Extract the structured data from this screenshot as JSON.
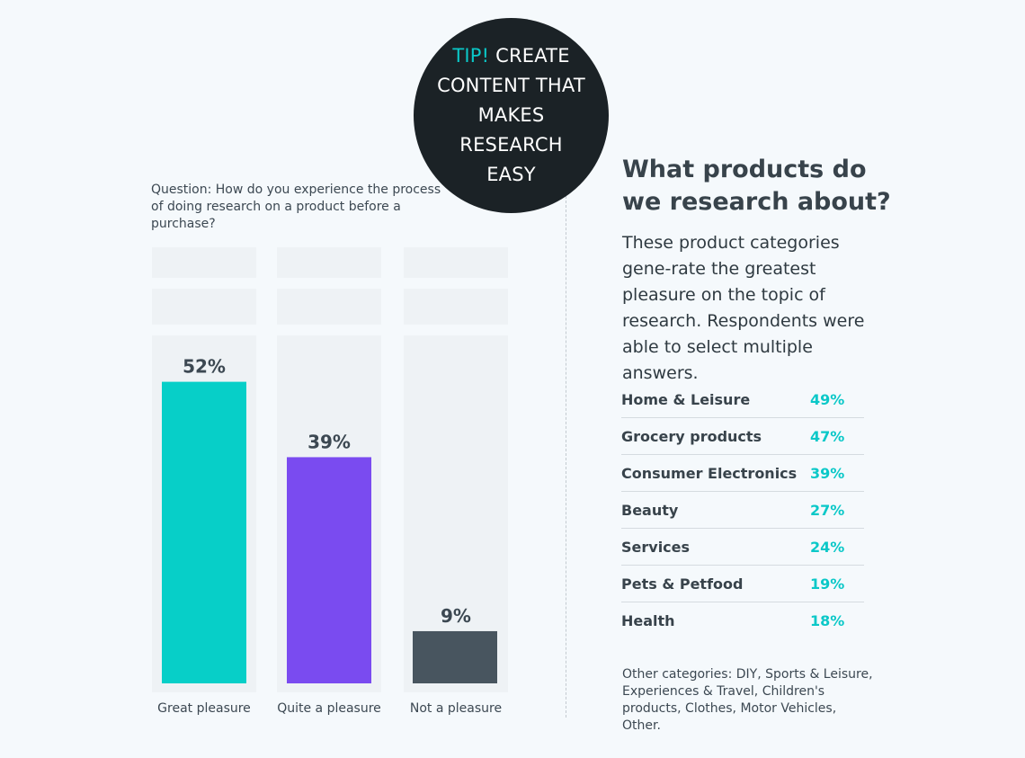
{
  "tip": {
    "accent": "TIP!",
    "text": "CREATE CONTENT THAT MAKES RESEARCH EASY"
  },
  "question": "Question: How do you experience the process of doing research on a product before a purchase?",
  "chart_data": {
    "type": "bar",
    "categories": [
      "Great pleasure",
      "Quite a pleasure",
      "Not a pleasure"
    ],
    "values": [
      52,
      39,
      9
    ],
    "value_labels": [
      "52%",
      "39%",
      "9%"
    ],
    "colors": [
      "#07cfc8",
      "#7a4bf0",
      "#48555f"
    ],
    "ylim": [
      0,
      60
    ],
    "grid": false,
    "legend": "none"
  },
  "right": {
    "heading": "What products do we research about?",
    "description": "These product categories gene-rate the greatest pleasure on the topic of research. Respondents were able to select multiple answers.",
    "categories": [
      {
        "name": "Home & Leisure",
        "value": "49%"
      },
      {
        "name": "Grocery products",
        "value": "47%"
      },
      {
        "name": "Consumer Electronics",
        "value": "39%"
      },
      {
        "name": "Beauty",
        "value": "27%"
      },
      {
        "name": "Services",
        "value": "24%"
      },
      {
        "name": "Pets & Petfood",
        "value": "19%"
      },
      {
        "name": "Health",
        "value": "18%"
      }
    ],
    "other": "Other categories: DIY, Sports & Leisure, Experiences & Travel, Children's products, Clothes, Motor Vehicles, Other."
  },
  "colors": {
    "accent": "#0bc8c8",
    "dark": "#1b2226",
    "background": "#f5f9fc"
  }
}
